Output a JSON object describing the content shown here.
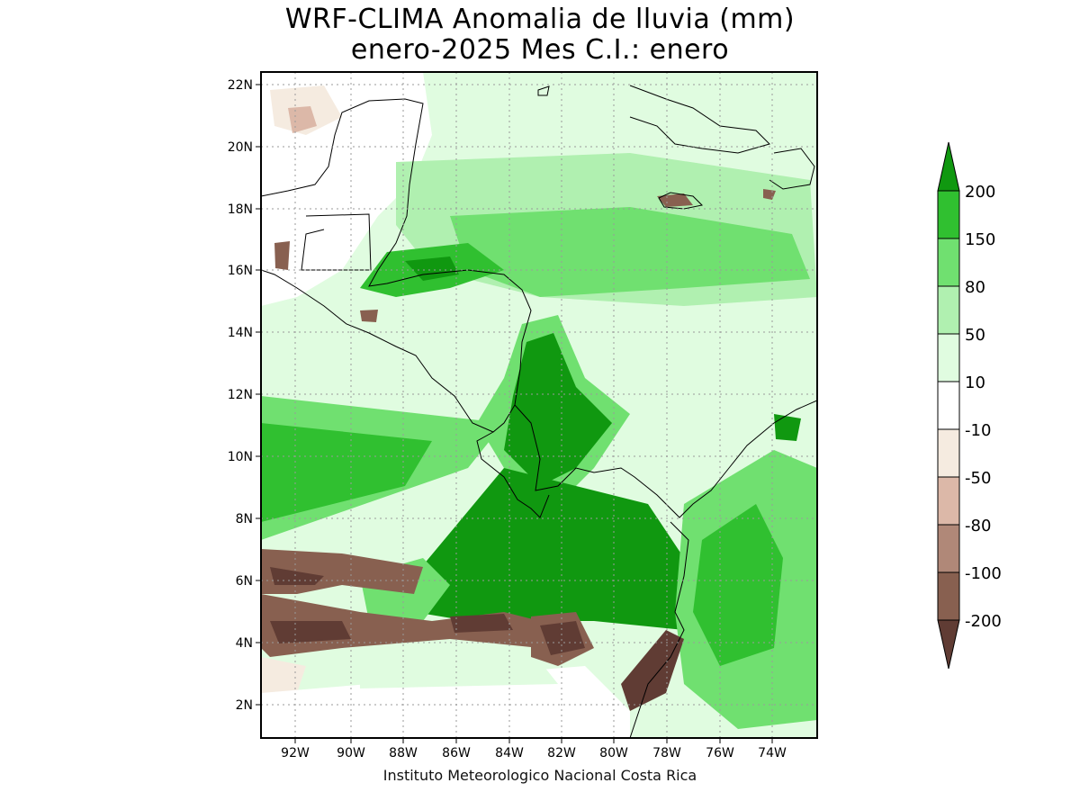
{
  "title_line1": "WRF-CLIMA Anomalia de lluvia (mm)",
  "title_line2": "enero-2025 Mes C.I.: enero",
  "credit": "Instituto Meteorologico Nacional Costa Rica",
  "lat_labels": [
    "22N",
    "20N",
    "18N",
    "16N",
    "14N",
    "12N",
    "10N",
    "8N",
    "6N",
    "4N",
    "2N"
  ],
  "lon_labels": [
    "92W",
    "90W",
    "88W",
    "86W",
    "84W",
    "82W",
    "80W",
    "78W",
    "76W",
    "74W"
  ],
  "colorbar": {
    "levels": [
      "200",
      "150",
      "80",
      "50",
      "10",
      "-10",
      "-50",
      "-80",
      "-100",
      "-200"
    ],
    "colors": [
      "#109810",
      "#30c030",
      "#70e070",
      "#b0f0b0",
      "#e0fce0",
      "#ffffff",
      "#f5ebe0",
      "#dcb8a8",
      "#b08878",
      "#886050",
      "#603c34"
    ]
  },
  "map": {
    "bounds": {
      "lon_min": -93.5,
      "lon_max": -72.4,
      "lat_min": 1.0,
      "lat_max": 22.4
    },
    "palette": {
      "g200": "#109810",
      "g150": "#30c030",
      "g80": "#70e070",
      "g50": "#b0f0b0",
      "g10": "#e0fce0",
      "b10": "#f5ebe0",
      "b50": "#dcb8a8",
      "b80": "#b08878",
      "b100": "#886050",
      "b200": "#603c34"
    }
  }
}
